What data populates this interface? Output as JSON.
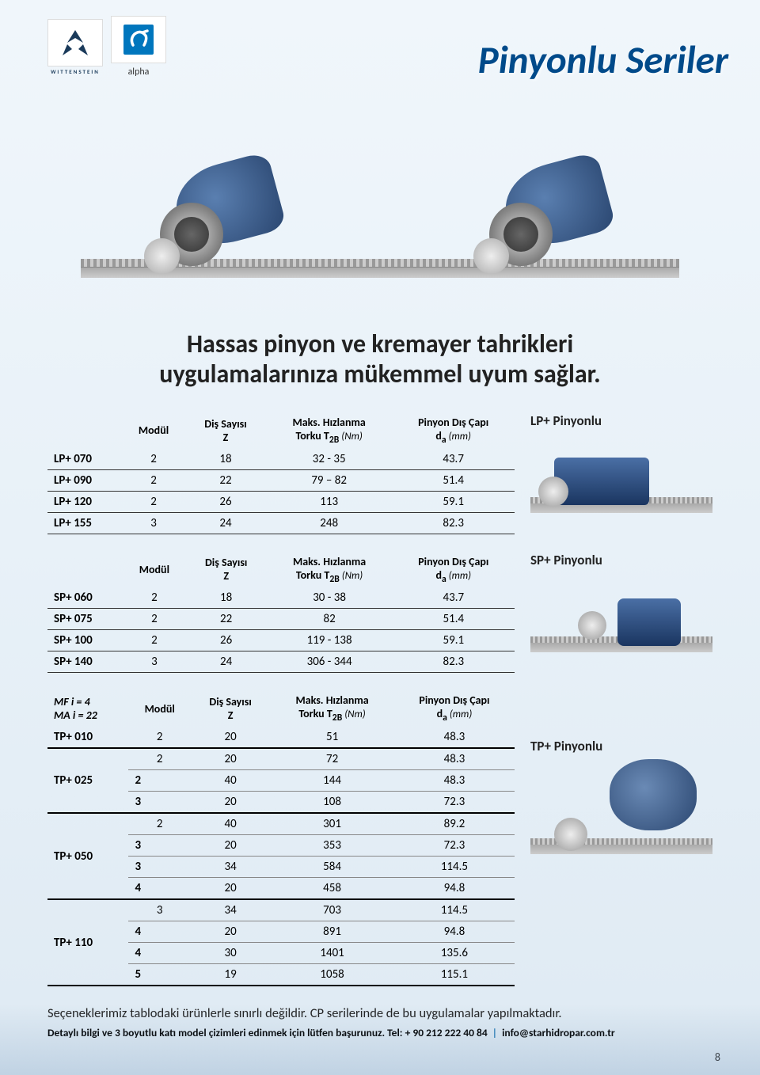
{
  "page_title": "Pinyonlu Seriler",
  "subtitle_line1": "Hassas pinyon ve kremayer tahrikleri",
  "subtitle_line2": "uygulamalarınıza mükemmel uyum sağlar.",
  "logos": {
    "wittenstein_text": "WITTENSTEIN",
    "alpha_text": "alpha"
  },
  "columns": {
    "modul": "Modül",
    "dis_sayisi": "Diş Sayısı",
    "dis_sayisi_sub": "Z",
    "maks_hizlanma": "Maks. Hızlanma",
    "maks_hizlanma_sub_pre": "Torku T",
    "maks_hizlanma_sub_b": "2B",
    "maks_hizlanma_sub_unit": " (Nm)",
    "pinyon_dis_capi": "Pinyon Dış Çapı",
    "pinyon_dis_capi_sub_pre": "d",
    "pinyon_dis_capi_sub_a": "a",
    "pinyon_dis_capi_sub_unit": " (mm)"
  },
  "lp": {
    "label": "LP+  Pinyonlu",
    "rows": [
      [
        "LP+ 070",
        "2",
        "18",
        "32 - 35",
        "43.7"
      ],
      [
        "LP+ 090",
        "2",
        "22",
        "79 – 82",
        "51.4"
      ],
      [
        "LP+ 120",
        "2",
        "26",
        "113",
        "59.1"
      ],
      [
        "LP+ 155",
        "3",
        "24",
        "248",
        "82.3"
      ]
    ]
  },
  "sp": {
    "label": "SP+  Pinyonlu",
    "rows": [
      [
        "SP+ 060",
        "2",
        "18",
        "30 - 38",
        "43.7"
      ],
      [
        "SP+ 075",
        "2",
        "22",
        "82",
        "51.4"
      ],
      [
        "SP+ 100",
        "2",
        "26",
        "119 - 138",
        "59.1"
      ],
      [
        "SP+ 140",
        "3",
        "24",
        "306 - 344",
        "82.3"
      ]
    ]
  },
  "tp": {
    "label": "TP+  Pinyonlu",
    "mf_line": "MF  i = 4",
    "ma_line": "MA  i = 22",
    "groups": [
      {
        "model": "TP+ 010",
        "rows": [
          [
            "2",
            "20",
            "51",
            "48.3"
          ]
        ]
      },
      {
        "model": "TP+ 025",
        "rows": [
          [
            "2",
            "20",
            "72",
            "48.3"
          ],
          [
            "2",
            "40",
            "144",
            "48.3"
          ],
          [
            "3",
            "20",
            "108",
            "72.3"
          ]
        ]
      },
      {
        "model": "TP+ 050",
        "rows": [
          [
            "2",
            "40",
            "301",
            "89.2"
          ],
          [
            "3",
            "20",
            "353",
            "72.3"
          ],
          [
            "3",
            "34",
            "584",
            "114.5"
          ],
          [
            "4",
            "20",
            "458",
            "94.8"
          ]
        ]
      },
      {
        "model": "TP+ 110",
        "rows": [
          [
            "3",
            "34",
            "703",
            "114.5"
          ],
          [
            "4",
            "20",
            "891",
            "94.8"
          ],
          [
            "4",
            "30",
            "1401",
            "135.6"
          ],
          [
            "5",
            "19",
            "1058",
            "115.1"
          ]
        ]
      }
    ]
  },
  "footer": {
    "note": "Seçeneklerimiz tablodaki ürünlerle sınırlı değildir. CP serilerinde de bu uygulamalar yapılmaktadır.",
    "detail_pre": "Detaylı bilgi ve 3 boyutlu katı model çizimleri edinmek için lütfen başurunuz. Tel: + 90 212 222 40 84",
    "detail_email": "info@starhidropar.com.tr"
  },
  "page_number": "8",
  "colors": {
    "title": "#004a8a",
    "accent_blue": "#2a7db8",
    "bg_top": "#f0f6fb",
    "bg_bottom": "#dfeaf3"
  }
}
